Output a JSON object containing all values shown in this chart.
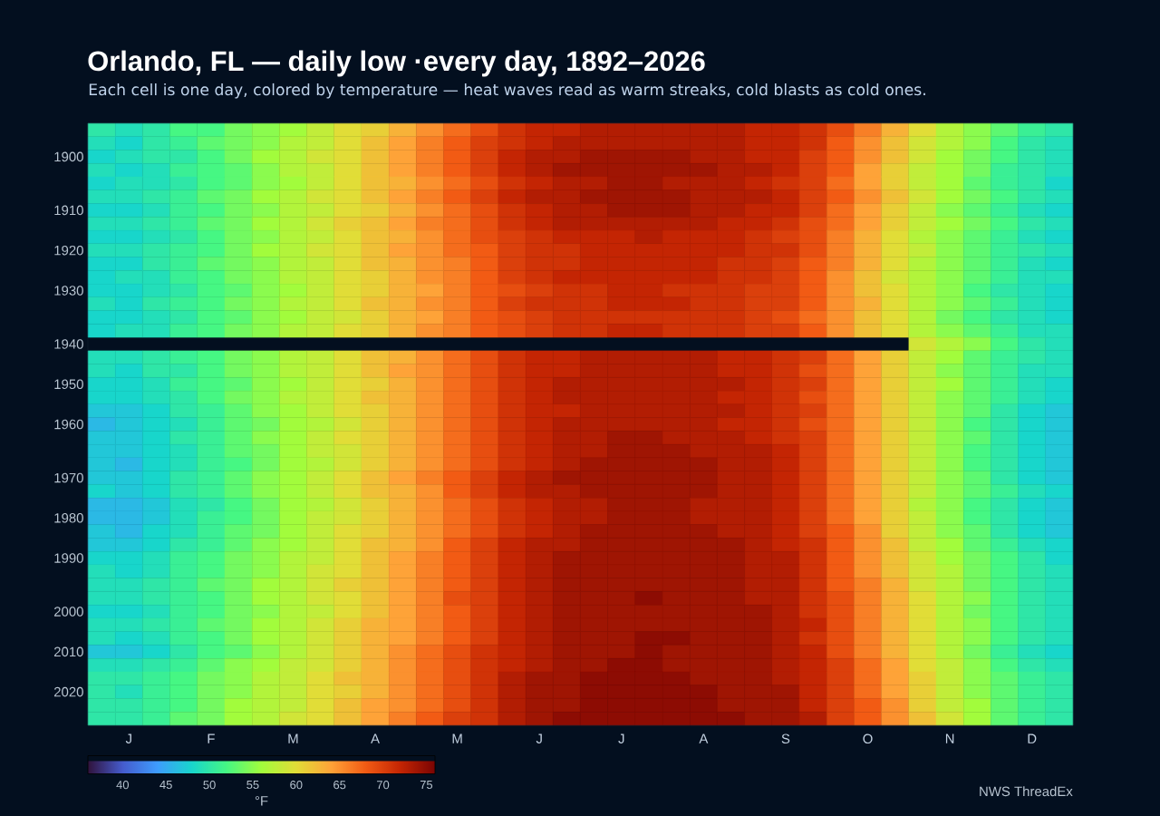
{
  "chart_data": {
    "type": "heatmap",
    "title": "Orlando, FL — daily low ·every day, 1892–2026",
    "subtitle": "Each cell is one day, colored by temperature — heat waves read as warm streaks, cold blasts as cold ones.",
    "categories": [
      null,
      "J",
      null,
      null,
      "F",
      null,
      null,
      "M",
      null,
      null,
      "A",
      null,
      null,
      "M",
      null,
      null,
      "J",
      null,
      null,
      "J",
      null,
      null,
      "A",
      null,
      null,
      "S",
      null,
      null,
      "O",
      null,
      null,
      "N",
      null,
      null,
      "D",
      null
    ],
    "y_categories": [
      null,
      null,
      "1900",
      null,
      null,
      null,
      "1910",
      null,
      null,
      "1920",
      null,
      null,
      "1930",
      null,
      null,
      null,
      "1940",
      null,
      null,
      "1950",
      null,
      null,
      "1960",
      null,
      null,
      null,
      "1970",
      null,
      null,
      "1980",
      null,
      null,
      "1990",
      null,
      null,
      null,
      "2000",
      null,
      null,
      "2010",
      null,
      null,
      "2020",
      null,
      null
    ],
    "cells": [
      [
        50,
        49,
        50,
        52,
        52,
        54,
        55,
        56,
        58,
        60,
        61,
        63,
        65,
        67,
        69,
        71,
        72,
        72,
        73,
        73,
        73,
        73,
        73,
        73,
        72,
        72,
        71,
        69,
        66,
        63,
        60,
        57,
        55,
        53,
        51,
        50
      ],
      [
        49,
        48,
        50,
        51,
        53,
        54,
        55,
        57,
        58,
        60,
        62,
        64,
        66,
        68,
        70,
        71,
        72,
        73,
        73,
        73,
        73,
        73,
        73,
        73,
        72,
        72,
        71,
        68,
        65,
        62,
        59,
        57,
        55,
        52,
        50,
        49
      ],
      [
        48,
        49,
        50,
        50,
        52,
        54,
        56,
        57,
        59,
        60,
        62,
        64,
        66,
        68,
        70,
        72,
        73,
        73,
        74,
        74,
        74,
        74,
        73,
        73,
        72,
        72,
        70,
        68,
        65,
        62,
        59,
        56,
        54,
        52,
        50,
        49
      ],
      [
        49,
        48,
        49,
        51,
        52,
        53,
        55,
        57,
        58,
        60,
        62,
        64,
        66,
        68,
        70,
        72,
        73,
        74,
        74,
        74,
        74,
        74,
        74,
        73,
        73,
        72,
        70,
        68,
        64,
        61,
        58,
        56,
        54,
        51,
        50,
        49
      ],
      [
        48,
        49,
        49,
        50,
        52,
        53,
        55,
        56,
        58,
        60,
        62,
        63,
        65,
        67,
        69,
        71,
        72,
        73,
        73,
        74,
        74,
        73,
        73,
        73,
        72,
        71,
        70,
        67,
        64,
        61,
        58,
        56,
        53,
        51,
        50,
        48
      ],
      [
        49,
        49,
        50,
        51,
        53,
        54,
        56,
        57,
        59,
        60,
        62,
        64,
        66,
        68,
        70,
        72,
        73,
        73,
        74,
        74,
        74,
        74,
        73,
        73,
        73,
        72,
        70,
        68,
        65,
        62,
        59,
        56,
        54,
        52,
        50,
        49
      ],
      [
        48,
        48,
        49,
        51,
        52,
        54,
        55,
        57,
        58,
        60,
        61,
        63,
        65,
        67,
        69,
        71,
        72,
        73,
        73,
        74,
        74,
        74,
        73,
        73,
        72,
        72,
        70,
        67,
        64,
        61,
        58,
        55,
        53,
        51,
        49,
        48
      ],
      [
        49,
        49,
        50,
        51,
        53,
        54,
        56,
        57,
        59,
        61,
        62,
        64,
        66,
        67,
        69,
        71,
        72,
        73,
        73,
        73,
        73,
        73,
        73,
        72,
        72,
        71,
        69,
        67,
        64,
        61,
        58,
        56,
        54,
        52,
        50,
        49
      ],
      [
        48,
        48,
        49,
        50,
        52,
        54,
        55,
        57,
        58,
        60,
        62,
        63,
        65,
        67,
        69,
        70,
        71,
        72,
        72,
        72,
        73,
        72,
        72,
        72,
        71,
        70,
        69,
        66,
        63,
        60,
        57,
        55,
        53,
        51,
        49,
        48
      ],
      [
        49,
        49,
        50,
        51,
        52,
        54,
        56,
        57,
        59,
        60,
        62,
        64,
        65,
        67,
        68,
        70,
        71,
        71,
        72,
        72,
        72,
        72,
        72,
        72,
        71,
        71,
        69,
        66,
        63,
        60,
        58,
        55,
        53,
        51,
        50,
        49
      ],
      [
        48,
        48,
        50,
        51,
        53,
        54,
        55,
        57,
        58,
        60,
        62,
        63,
        65,
        66,
        68,
        70,
        71,
        71,
        72,
        72,
        72,
        72,
        72,
        71,
        71,
        70,
        68,
        66,
        63,
        60,
        57,
        55,
        53,
        51,
        49,
        48
      ],
      [
        48,
        49,
        49,
        51,
        52,
        54,
        55,
        57,
        58,
        60,
        61,
        63,
        65,
        66,
        68,
        70,
        71,
        72,
        72,
        72,
        72,
        72,
        72,
        71,
        71,
        70,
        68,
        65,
        62,
        59,
        57,
        55,
        53,
        51,
        49,
        49
      ],
      [
        48,
        48,
        49,
        50,
        52,
        53,
        55,
        56,
        58,
        60,
        61,
        63,
        64,
        66,
        68,
        69,
        70,
        71,
        71,
        72,
        72,
        71,
        71,
        71,
        70,
        70,
        68,
        65,
        62,
        60,
        57,
        55,
        52,
        50,
        49,
        48
      ],
      [
        49,
        48,
        50,
        51,
        52,
        54,
        55,
        57,
        58,
        60,
        62,
        63,
        65,
        66,
        68,
        70,
        71,
        71,
        71,
        72,
        72,
        72,
        71,
        71,
        70,
        70,
        68,
        65,
        63,
        60,
        57,
        55,
        53,
        51,
        49,
        48
      ],
      [
        48,
        48,
        49,
        50,
        52,
        53,
        55,
        56,
        58,
        59,
        61,
        63,
        64,
        66,
        68,
        69,
        70,
        71,
        71,
        71,
        71,
        71,
        71,
        71,
        70,
        69,
        67,
        65,
        62,
        60,
        57,
        54,
        52,
        50,
        49,
        48
      ],
      [
        48,
        49,
        49,
        51,
        52,
        54,
        55,
        57,
        58,
        60,
        61,
        63,
        65,
        66,
        68,
        69,
        70,
        71,
        71,
        72,
        72,
        71,
        71,
        71,
        70,
        70,
        68,
        65,
        62,
        60,
        57,
        55,
        53,
        51,
        49,
        49
      ],
      [
        null,
        null,
        null,
        null,
        null,
        null,
        null,
        null,
        null,
        null,
        null,
        null,
        null,
        null,
        null,
        null,
        null,
        null,
        null,
        null,
        null,
        null,
        null,
        null,
        null,
        null,
        null,
        null,
        null,
        null,
        59,
        57,
        55,
        52,
        50,
        49
      ],
      [
        49,
        49,
        50,
        51,
        52,
        54,
        55,
        57,
        58,
        60,
        62,
        63,
        65,
        67,
        69,
        71,
        72,
        72,
        73,
        73,
        73,
        73,
        73,
        72,
        72,
        71,
        70,
        67,
        64,
        61,
        58,
        56,
        53,
        51,
        50,
        49
      ],
      [
        49,
        48,
        50,
        50,
        52,
        54,
        55,
        57,
        58,
        60,
        62,
        64,
        65,
        67,
        69,
        71,
        72,
        72,
        73,
        73,
        73,
        73,
        73,
        72,
        72,
        71,
        69,
        67,
        64,
        61,
        58,
        55,
        53,
        51,
        49,
        49
      ],
      [
        48,
        48,
        49,
        51,
        52,
        53,
        55,
        56,
        58,
        60,
        61,
        63,
        65,
        67,
        69,
        71,
        72,
        73,
        73,
        73,
        73,
        73,
        73,
        73,
        72,
        71,
        70,
        67,
        64,
        61,
        58,
        56,
        53,
        51,
        49,
        48
      ],
      [
        48,
        48,
        49,
        50,
        52,
        54,
        55,
        57,
        58,
        60,
        62,
        63,
        65,
        67,
        69,
        71,
        72,
        73,
        73,
        73,
        73,
        73,
        73,
        72,
        72,
        71,
        69,
        67,
        64,
        61,
        58,
        55,
        53,
        51,
        49,
        48
      ],
      [
        47,
        47,
        48,
        50,
        51,
        53,
        55,
        56,
        58,
        60,
        61,
        63,
        65,
        67,
        69,
        71,
        72,
        72,
        73,
        73,
        73,
        73,
        73,
        73,
        72,
        71,
        70,
        67,
        64,
        61,
        58,
        55,
        53,
        50,
        48,
        47
      ],
      [
        46,
        47,
        48,
        49,
        51,
        53,
        54,
        56,
        57,
        59,
        61,
        63,
        65,
        67,
        69,
        71,
        72,
        73,
        73,
        73,
        73,
        73,
        73,
        72,
        72,
        71,
        69,
        67,
        64,
        61,
        58,
        55,
        52,
        50,
        48,
        47
      ],
      [
        47,
        47,
        48,
        50,
        51,
        53,
        55,
        56,
        58,
        60,
        61,
        63,
        65,
        67,
        69,
        71,
        72,
        73,
        73,
        74,
        74,
        73,
        73,
        73,
        72,
        71,
        70,
        67,
        64,
        61,
        58,
        55,
        53,
        50,
        48,
        47
      ],
      [
        47,
        47,
        48,
        49,
        51,
        53,
        54,
        56,
        58,
        59,
        61,
        63,
        65,
        67,
        69,
        71,
        72,
        73,
        73,
        74,
        74,
        74,
        73,
        73,
        73,
        72,
        70,
        67,
        64,
        61,
        58,
        55,
        52,
        50,
        48,
        47
      ],
      [
        47,
        46,
        48,
        49,
        51,
        52,
        54,
        56,
        57,
        59,
        61,
        63,
        65,
        67,
        69,
        71,
        72,
        73,
        74,
        74,
        74,
        74,
        74,
        73,
        73,
        72,
        70,
        67,
        64,
        61,
        58,
        55,
        52,
        50,
        48,
        47
      ],
      [
        47,
        47,
        48,
        50,
        51,
        53,
        55,
        56,
        58,
        60,
        62,
        64,
        66,
        68,
        70,
        72,
        73,
        74,
        74,
        74,
        74,
        74,
        74,
        73,
        73,
        72,
        70,
        67,
        64,
        61,
        58,
        55,
        53,
        50,
        48,
        47
      ],
      [
        48,
        47,
        48,
        50,
        51,
        53,
        55,
        56,
        58,
        60,
        62,
        63,
        65,
        68,
        70,
        72,
        73,
        73,
        74,
        74,
        74,
        74,
        74,
        73,
        73,
        72,
        70,
        67,
        64,
        61,
        58,
        55,
        53,
        51,
        49,
        48
      ],
      [
        46,
        46,
        47,
        49,
        50,
        52,
        54,
        56,
        57,
        59,
        61,
        63,
        65,
        67,
        69,
        71,
        72,
        73,
        73,
        74,
        74,
        74,
        73,
        73,
        73,
        72,
        70,
        67,
        64,
        61,
        57,
        55,
        52,
        50,
        48,
        47
      ],
      [
        46,
        46,
        47,
        49,
        51,
        52,
        54,
        56,
        58,
        59,
        61,
        63,
        65,
        67,
        69,
        71,
        72,
        73,
        73,
        74,
        74,
        74,
        73,
        73,
        73,
        72,
        70,
        67,
        64,
        61,
        58,
        55,
        52,
        50,
        48,
        47
      ],
      [
        47,
        46,
        48,
        49,
        51,
        53,
        54,
        56,
        58,
        60,
        61,
        63,
        65,
        67,
        69,
        71,
        72,
        73,
        74,
        74,
        74,
        74,
        74,
        73,
        73,
        72,
        70,
        68,
        65,
        61,
        58,
        55,
        53,
        50,
        48,
        47
      ],
      [
        47,
        47,
        48,
        50,
        51,
        53,
        55,
        56,
        58,
        60,
        62,
        63,
        65,
        68,
        70,
        72,
        73,
        73,
        74,
        74,
        74,
        74,
        74,
        74,
        73,
        72,
        71,
        68,
        65,
        62,
        58,
        56,
        53,
        51,
        49,
        48
      ],
      [
        48,
        48,
        49,
        51,
        52,
        54,
        55,
        57,
        58,
        60,
        62,
        64,
        66,
        68,
        70,
        72,
        73,
        74,
        74,
        74,
        74,
        74,
        74,
        74,
        73,
        73,
        71,
        68,
        65,
        62,
        59,
        56,
        54,
        52,
        50,
        48
      ],
      [
        49,
        48,
        49,
        51,
        52,
        54,
        55,
        57,
        59,
        60,
        62,
        64,
        66,
        68,
        70,
        72,
        73,
        74,
        74,
        74,
        74,
        74,
        74,
        74,
        73,
        73,
        71,
        68,
        65,
        62,
        59,
        57,
        54,
        52,
        50,
        49
      ],
      [
        49,
        49,
        50,
        51,
        53,
        54,
        56,
        57,
        59,
        61,
        62,
        64,
        66,
        68,
        70,
        72,
        73,
        74,
        74,
        74,
        74,
        74,
        74,
        74,
        73,
        73,
        71,
        68,
        66,
        63,
        59,
        57,
        54,
        52,
        50,
        49
      ],
      [
        49,
        49,
        50,
        51,
        52,
        54,
        56,
        57,
        59,
        60,
        62,
        64,
        66,
        69,
        70,
        72,
        73,
        74,
        74,
        74,
        75,
        74,
        74,
        74,
        73,
        73,
        71,
        69,
        66,
        63,
        60,
        57,
        55,
        52,
        50,
        49
      ],
      [
        48,
        48,
        49,
        51,
        52,
        54,
        55,
        57,
        58,
        60,
        62,
        64,
        66,
        68,
        70,
        72,
        73,
        74,
        74,
        74,
        74,
        74,
        74,
        74,
        74,
        73,
        71,
        69,
        66,
        63,
        60,
        57,
        54,
        52,
        50,
        49
      ],
      [
        49,
        49,
        50,
        51,
        53,
        54,
        56,
        57,
        59,
        61,
        63,
        64,
        66,
        68,
        70,
        72,
        73,
        74,
        74,
        74,
        74,
        74,
        74,
        74,
        74,
        73,
        72,
        69,
        66,
        63,
        60,
        57,
        55,
        52,
        50,
        49
      ],
      [
        49,
        48,
        49,
        51,
        52,
        54,
        56,
        57,
        59,
        61,
        63,
        64,
        66,
        68,
        70,
        72,
        73,
        74,
        74,
        74,
        75,
        75,
        74,
        74,
        74,
        73,
        71,
        69,
        66,
        63,
        60,
        57,
        55,
        52,
        50,
        49
      ],
      [
        47,
        47,
        48,
        50,
        52,
        53,
        55,
        57,
        59,
        61,
        63,
        65,
        67,
        69,
        71,
        72,
        73,
        74,
        74,
        74,
        75,
        74,
        74,
        74,
        74,
        73,
        72,
        69,
        66,
        63,
        60,
        57,
        54,
        51,
        49,
        48
      ],
      [
        49,
        49,
        50,
        51,
        53,
        55,
        56,
        58,
        59,
        61,
        63,
        65,
        67,
        69,
        71,
        72,
        73,
        74,
        74,
        75,
        75,
        74,
        74,
        74,
        74,
        73,
        72,
        70,
        67,
        64,
        60,
        58,
        55,
        52,
        50,
        49
      ],
      [
        50,
        50,
        51,
        52,
        54,
        55,
        57,
        58,
        60,
        62,
        63,
        65,
        67,
        69,
        71,
        73,
        74,
        74,
        75,
        75,
        75,
        75,
        74,
        74,
        74,
        73,
        72,
        70,
        67,
        64,
        61,
        58,
        55,
        53,
        51,
        50
      ],
      [
        50,
        49,
        51,
        52,
        54,
        55,
        57,
        58,
        60,
        61,
        63,
        65,
        67,
        69,
        71,
        73,
        74,
        74,
        75,
        75,
        75,
        75,
        75,
        74,
        74,
        74,
        72,
        70,
        67,
        64,
        61,
        58,
        55,
        53,
        51,
        50
      ],
      [
        50,
        50,
        51,
        52,
        54,
        56,
        57,
        58,
        60,
        62,
        64,
        65,
        67,
        69,
        71,
        73,
        74,
        74,
        75,
        75,
        75,
        75,
        75,
        74,
        74,
        74,
        72,
        70,
        68,
        65,
        61,
        58,
        56,
        53,
        51,
        50
      ],
      [
        50,
        50,
        51,
        53,
        54,
        56,
        57,
        59,
        60,
        62,
        64,
        66,
        68,
        70,
        71,
        73,
        74,
        75,
        75,
        75,
        75,
        75,
        75,
        75,
        74,
        74,
        73,
        70,
        68,
        65,
        62,
        59,
        56,
        53,
        51,
        50
      ]
    ],
    "clim": [
      36,
      76
    ],
    "cticks": [
      40,
      45,
      50,
      55,
      60,
      65,
      70,
      75
    ],
    "clabel": "°F",
    "annotations": [
      "NWS ThreadEx"
    ]
  }
}
